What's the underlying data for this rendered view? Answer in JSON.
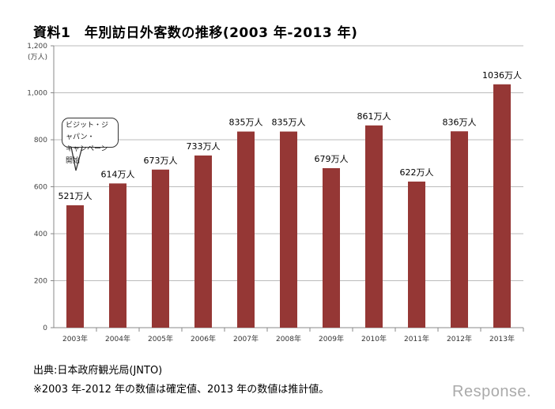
{
  "title": "資料1　年別訪日外客数の推移(2003 年-2013 年)",
  "source": "出典:日本政府観光局(JNTO)",
  "footnote": "※2003 年-2012 年の数値は確定値、2013 年の数値は推計値。",
  "watermark": "Response.",
  "chart_data": {
    "type": "bar",
    "title": "資料1　年別訪日外客数の推移(2003 年-2013 年)",
    "ylabel": "(万人)",
    "ylim": [
      0,
      1200
    ],
    "yticks": [
      "0",
      "200",
      "400",
      "600",
      "800",
      "1,000",
      "1,200"
    ],
    "ytick_values": [
      0,
      200,
      400,
      600,
      800,
      1000,
      1200
    ],
    "grid": true,
    "categories": [
      "2003年",
      "2004年",
      "2005年",
      "2006年",
      "2007年",
      "2008年",
      "2009年",
      "2010年",
      "2011年",
      "2012年",
      "2013年"
    ],
    "values": [
      521,
      614,
      673,
      733,
      835,
      835,
      679,
      861,
      622,
      836,
      1036
    ],
    "data_labels": [
      "521万人",
      "614万人",
      "673万人",
      "733万人",
      "835万人",
      "835万人",
      "679万人",
      "861万人",
      "622万人",
      "836万人",
      "1036万人"
    ],
    "bar_color": "#953735",
    "annotation": {
      "line1": "ビジット・ジャパン・",
      "line2": "キャンペーン開始",
      "category": "2003年"
    }
  }
}
